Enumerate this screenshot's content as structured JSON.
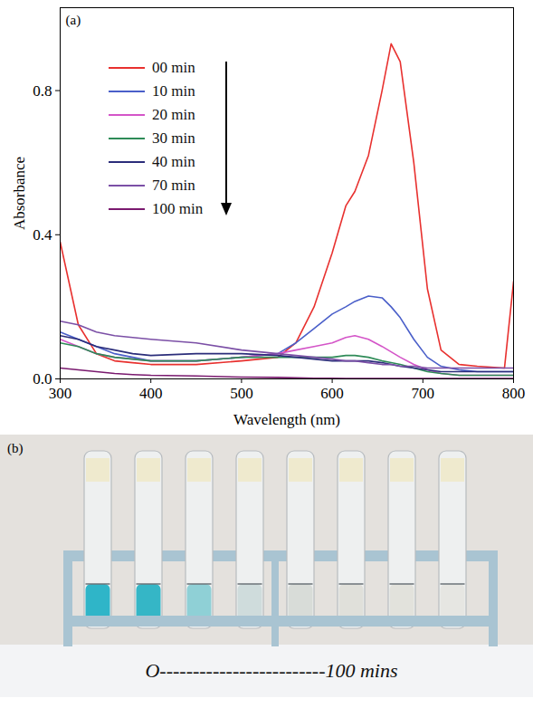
{
  "chart_data": {
    "type": "line",
    "annotations": [
      {
        "text": "(a)"
      }
    ],
    "x_label": "Wavelength (nm)",
    "y_label": "Absorbance",
    "x": [
      300,
      320,
      340,
      360,
      380,
      400,
      450,
      500,
      540,
      560,
      580,
      600,
      615,
      625,
      640,
      655,
      665,
      675,
      690,
      705,
      720,
      740,
      760,
      790,
      800
    ],
    "series": [
      {
        "name": "00 min",
        "color": "#e8312f",
        "values": [
          0.38,
          0.15,
          0.07,
          0.05,
          0.045,
          0.04,
          0.04,
          0.05,
          0.06,
          0.1,
          0.2,
          0.35,
          0.48,
          0.52,
          0.62,
          0.8,
          0.93,
          0.88,
          0.6,
          0.25,
          0.08,
          0.04,
          0.035,
          0.03,
          0.27
        ]
      },
      {
        "name": "10 min",
        "color": "#4a5fc9",
        "values": [
          0.13,
          0.11,
          0.09,
          0.07,
          0.06,
          0.05,
          0.05,
          0.06,
          0.07,
          0.1,
          0.14,
          0.18,
          0.2,
          0.215,
          0.23,
          0.225,
          0.2,
          0.17,
          0.11,
          0.06,
          0.035,
          0.025,
          0.02,
          0.02,
          0.02
        ]
      },
      {
        "name": "20 min",
        "color": "#d455c8",
        "values": [
          0.11,
          0.09,
          0.07,
          0.06,
          0.055,
          0.05,
          0.05,
          0.06,
          0.07,
          0.08,
          0.09,
          0.1,
          0.115,
          0.12,
          0.11,
          0.09,
          0.075,
          0.06,
          0.04,
          0.025,
          0.015,
          0.01,
          0.01,
          0.01,
          0.01
        ]
      },
      {
        "name": "30 min",
        "color": "#2e8b57",
        "values": [
          0.1,
          0.09,
          0.07,
          0.06,
          0.055,
          0.05,
          0.05,
          0.06,
          0.06,
          0.06,
          0.06,
          0.06,
          0.065,
          0.065,
          0.06,
          0.05,
          0.045,
          0.04,
          0.03,
          0.02,
          0.015,
          0.01,
          0.01,
          0.01,
          0.01
        ]
      },
      {
        "name": "40 min",
        "color": "#2b2d7a",
        "values": [
          0.12,
          0.11,
          0.09,
          0.08,
          0.07,
          0.065,
          0.07,
          0.07,
          0.065,
          0.06,
          0.055,
          0.05,
          0.05,
          0.05,
          0.05,
          0.045,
          0.04,
          0.035,
          0.03,
          0.025,
          0.02,
          0.02,
          0.02,
          0.02,
          0.02
        ]
      },
      {
        "name": "70 min",
        "color": "#7b4fa6",
        "values": [
          0.16,
          0.15,
          0.13,
          0.12,
          0.115,
          0.11,
          0.1,
          0.08,
          0.07,
          0.065,
          0.06,
          0.055,
          0.05,
          0.05,
          0.045,
          0.04,
          0.04,
          0.035,
          0.035,
          0.03,
          0.03,
          0.03,
          0.03,
          0.03,
          0.03
        ]
      },
      {
        "name": "100 min",
        "color": "#7a1a6f",
        "values": [
          0.03,
          0.025,
          0.02,
          0.015,
          0.012,
          0.01,
          0.008,
          0.005,
          0.004,
          0.003,
          0.002,
          0.002,
          0.001,
          0.001,
          0.001,
          0.001,
          0.001,
          0.001,
          0.001,
          0.001,
          0.001,
          0.001,
          0.001,
          0.001,
          0.001
        ]
      }
    ],
    "xlim": [
      300,
      800
    ],
    "xticks": [
      300,
      400,
      500,
      600,
      700,
      800
    ],
    "ylim": [
      0,
      1.03
    ],
    "yticks": [
      {
        "value": 0,
        "label": "0.0"
      },
      {
        "value": 0.4,
        "label": "0.4"
      },
      {
        "value": 0.8,
        "label": "0.8"
      }
    ],
    "grid": false,
    "legend": "upper left"
  },
  "photo": {
    "label": "(b)",
    "caption": "O-------------------------100 mins",
    "tubes": [
      "#2fb5c8",
      "#35b6c6",
      "#8fd0d6",
      "#cfdcdc",
      "#d8dcd8",
      "#e0e0da",
      "#e2e2dc",
      "#e6e6e2"
    ]
  }
}
